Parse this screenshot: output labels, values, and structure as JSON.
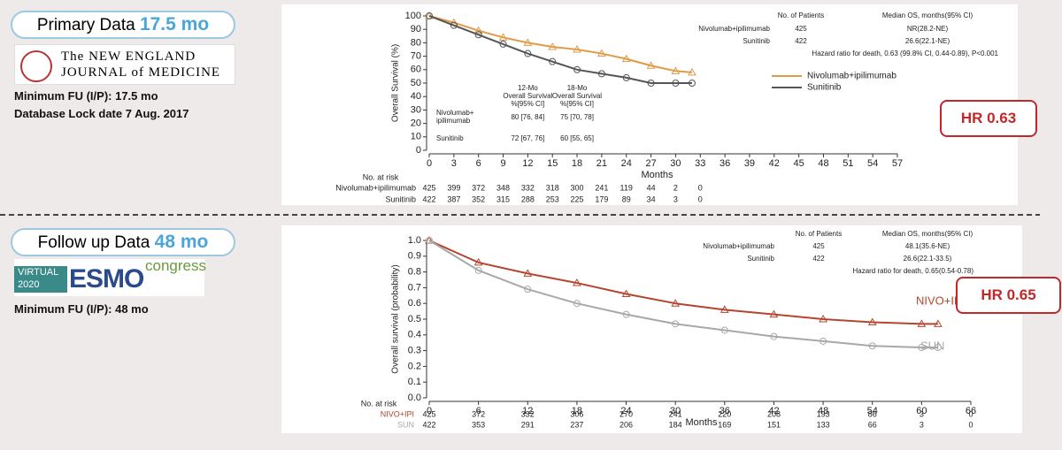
{
  "panels": {
    "primary": {
      "label": "Primary Data",
      "value": "17.5 mo",
      "journal": [
        "The NEW ENGLAND",
        "JOURNAL of MEDICINE"
      ],
      "notes": [
        "Minimum FU (I/P): 17.5 mo",
        "Database Lock date 7 Aug. 2017"
      ],
      "hr": "HR  0.63"
    },
    "followup": {
      "label": "Follow up Data",
      "value": "48 mo",
      "logo": [
        "VIRTUAL",
        "2020",
        "ESMO",
        "congress"
      ],
      "notes": [
        "Minimum FU (I/P): 48 mo"
      ],
      "hr": "HR 0.65"
    }
  },
  "chart_data": [
    {
      "type": "line",
      "xlabel": "Months",
      "ylabel": "Overall Survival (%)",
      "x": [
        0,
        3,
        6,
        9,
        12,
        15,
        18,
        21,
        24,
        27,
        30,
        32
      ],
      "series": [
        {
          "name": "Nivolumab+ipilimumab",
          "color": "#e09a48",
          "marker": "triangle",
          "values": [
            100,
            95,
            89,
            84,
            80,
            77,
            75,
            72,
            68,
            63,
            59,
            58
          ]
        },
        {
          "name": "Sunitinib",
          "color": "#555555",
          "marker": "circle",
          "values": [
            100,
            93,
            86,
            79,
            72,
            66,
            60,
            57,
            54,
            50,
            50,
            50
          ]
        }
      ],
      "xlim": [
        0,
        57
      ],
      "xticks": [
        0,
        3,
        6,
        9,
        12,
        15,
        18,
        21,
        24,
        27,
        30,
        33,
        36,
        39,
        42,
        45,
        48,
        51,
        54,
        57
      ],
      "ylim": [
        0,
        100
      ],
      "yticks": [
        0,
        10,
        20,
        30,
        40,
        50,
        60,
        70,
        80,
        90,
        100
      ],
      "table": {
        "headers": [
          "No. of Patients",
          "Median OS, months(95% CI)"
        ],
        "rows": [
          [
            "425",
            "NR(28.2-NE)"
          ],
          [
            "422",
            "26.6(22.1-NE)"
          ]
        ],
        "note": "Hazard ratio for death, 0.63 (99.8% CI, 0.44-0.89), P<0.001"
      },
      "landmarks": {
        "headers": [
          [
            "12-Mo",
            "Overall  Survival",
            "%[95% CI]"
          ],
          [
            "18-Mo",
            "Overall  Survival",
            "%[95% CI]"
          ]
        ],
        "row_labels": [
          "Nivolumab+",
          "ipilimumab",
          "Sunitinib"
        ],
        "rows": [
          [
            "80 [76, 84]",
            "75 [70, 78]"
          ],
          [
            "72 [67, 76]",
            "60 [55, 65]"
          ]
        ]
      },
      "at_risk": {
        "title": "No. at risk",
        "rows": [
          [
            425,
            399,
            372,
            348,
            332,
            318,
            300,
            241,
            119,
            44,
            2,
            0
          ],
          [
            422,
            387,
            352,
            315,
            288,
            253,
            225,
            179,
            89,
            34,
            3,
            0
          ]
        ]
      }
    },
    {
      "type": "line",
      "xlabel": "Months",
      "ylabel": "Overall survival (probability)",
      "x": [
        0,
        6,
        12,
        18,
        24,
        30,
        36,
        42,
        48,
        54,
        60,
        62
      ],
      "series": [
        {
          "name": "NIVO+IPI",
          "color": "#b5452e",
          "marker": "triangle",
          "values": [
            1.0,
            0.86,
            0.79,
            0.73,
            0.66,
            0.6,
            0.56,
            0.53,
            0.5,
            0.48,
            0.47,
            0.47
          ]
        },
        {
          "name": "SUN",
          "color": "#a8a8a8",
          "marker": "circle",
          "values": [
            1.0,
            0.81,
            0.69,
            0.6,
            0.53,
            0.47,
            0.43,
            0.39,
            0.36,
            0.33,
            0.32,
            0.32
          ]
        }
      ],
      "xlim": [
        0,
        66
      ],
      "xticks": [
        0,
        6,
        12,
        18,
        24,
        30,
        36,
        42,
        48,
        54,
        60,
        66
      ],
      "ylim": [
        0,
        1
      ],
      "yticks": [
        {
          "value": 0,
          "label": "0.0"
        },
        0.1,
        0.2,
        0.3,
        0.4,
        0.5,
        0.6,
        0.7,
        0.8,
        0.9,
        {
          "value": 1,
          "label": "1.0"
        }
      ],
      "table": {
        "headers": [
          "No. of Patients",
          "Median OS, months(95% CI)"
        ],
        "row_names": [
          "Nivolumab+ipilimumab",
          "Sunitinib"
        ],
        "rows": [
          [
            "425",
            "48.1(35.6-NE)"
          ],
          [
            "422",
            "26.6(22.1-33.5)"
          ]
        ],
        "note": "Hazard ratio for death, 0.65(0.54-0.78)"
      },
      "at_risk": {
        "title": "No. at risk",
        "rows": [
          [
            425,
            372,
            332,
            306,
            270,
            241,
            220,
            208,
            193,
            86,
            3,
            0
          ],
          [
            422,
            353,
            291,
            237,
            206,
            184,
            169,
            151,
            133,
            66,
            3,
            0
          ]
        ]
      }
    }
  ]
}
